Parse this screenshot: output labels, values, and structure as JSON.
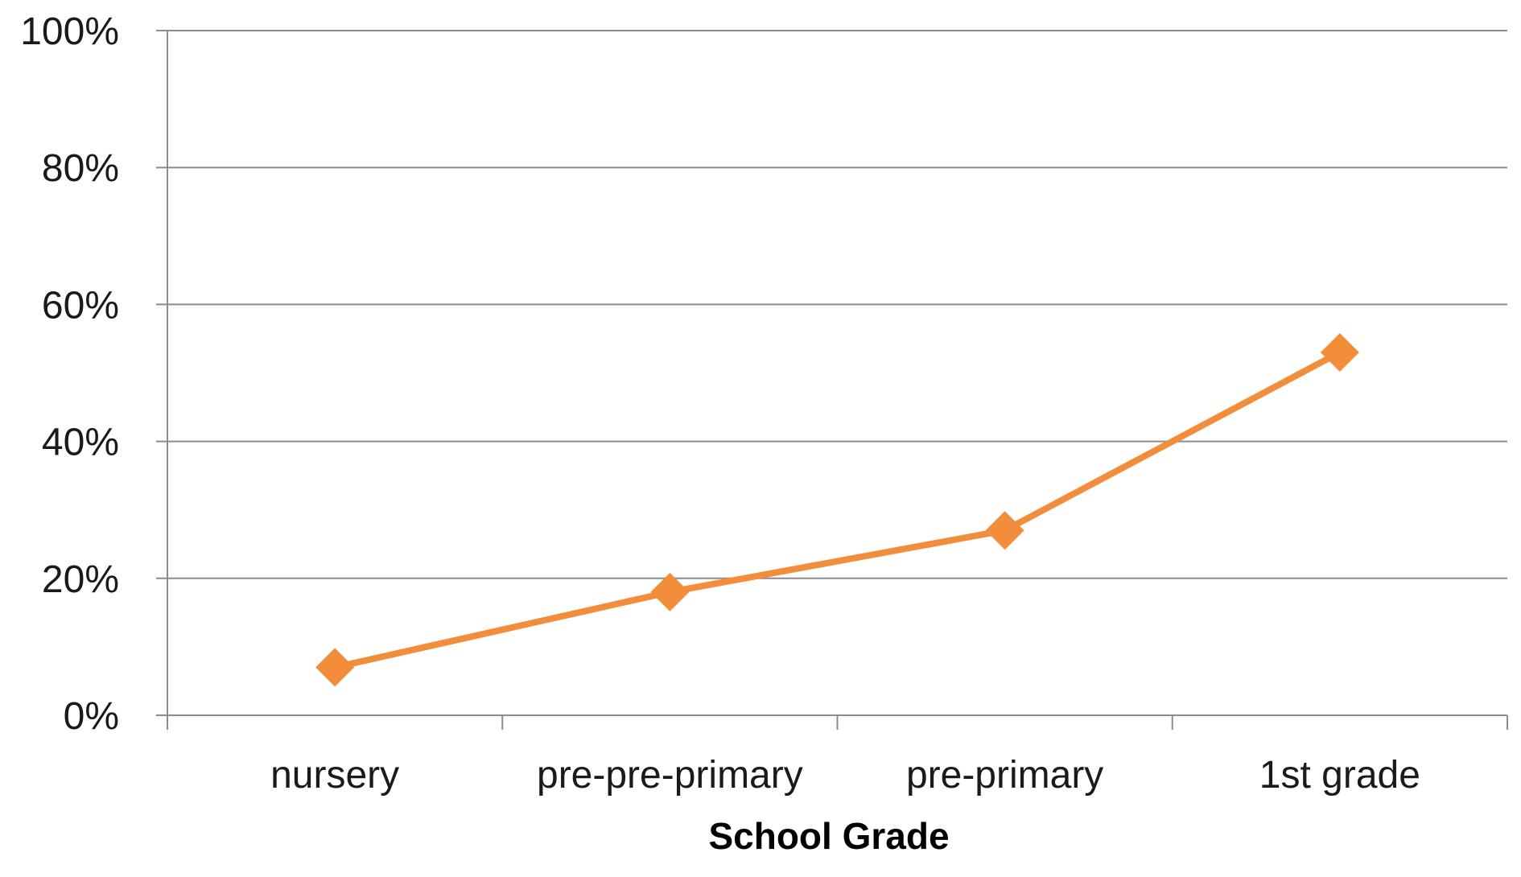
{
  "chart_data": {
    "type": "line",
    "title": "",
    "xlabel": "School Grade",
    "ylabel": "",
    "categories": [
      "nursery",
      "pre-pre-primary",
      "pre-primary",
      "1st grade"
    ],
    "series": [
      {
        "values": [
          7,
          18,
          27,
          53
        ],
        "color": "#f28e3b",
        "marker": "diamond"
      }
    ],
    "ylim": [
      0,
      100
    ],
    "y_ticks": [
      "0%",
      "20%",
      "40%",
      "60%",
      "80%",
      "100%"
    ],
    "y_tick_values": [
      0,
      20,
      40,
      60,
      80,
      100
    ],
    "grid": true,
    "legend": "none",
    "colors": {
      "grid": "#8c8c8c",
      "text": "#1a1a1a"
    }
  }
}
